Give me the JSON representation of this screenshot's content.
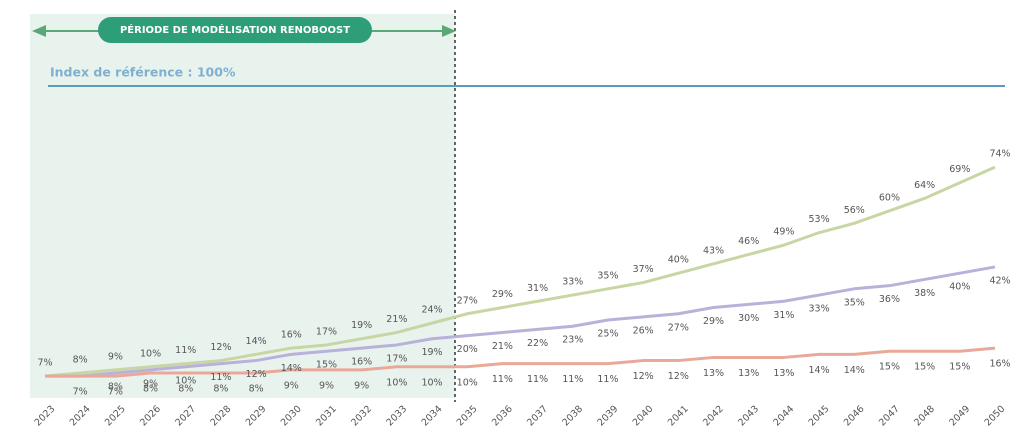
{
  "chart_data": {
    "type": "line",
    "period_label": "PÉRIODE DE MODÉLISATION RENOBOOST",
    "reference": {
      "label": "Index de référence : 100%",
      "value": 100,
      "color": "#5b9bbd"
    },
    "categories": [
      "2023",
      "2024",
      "2025",
      "2026",
      "2027",
      "2028",
      "2029",
      "2030",
      "2031",
      "2032",
      "2033",
      "2034",
      "2035",
      "2036",
      "2037",
      "2038",
      "2039",
      "2040",
      "2041",
      "2042",
      "2043",
      "2044",
      "2045",
      "2046",
      "2047",
      "2048",
      "2049",
      "2050"
    ],
    "ylim": [
      0,
      100
    ],
    "series": [
      {
        "color": "#c8d6a3",
        "values": [
          7,
          8,
          9,
          10,
          11,
          12,
          14,
          16,
          17,
          19,
          21,
          24,
          27,
          29,
          31,
          33,
          35,
          37,
          40,
          43,
          46,
          49,
          53,
          56,
          60,
          64,
          69,
          74
        ],
        "value_labels": [
          "7%",
          "8%",
          "9%",
          "10%",
          "11%",
          "12%",
          "14%",
          "16%",
          "17%",
          "19%",
          "21%",
          "24%",
          "27%",
          "29%",
          "31%",
          "33%",
          "35%",
          "37%",
          "40%",
          "43%",
          "46%",
          "49%",
          "53%",
          "56%",
          "60%",
          "64%",
          "69%",
          "74%"
        ]
      },
      {
        "color": "#b8b2da",
        "values": [
          7,
          7,
          8,
          9,
          10,
          11,
          12,
          14,
          15,
          16,
          17,
          19,
          20,
          21,
          22,
          23,
          25,
          26,
          27,
          29,
          30,
          31,
          33,
          35,
          36,
          38,
          40,
          42
        ],
        "value_labels": [
          null,
          null,
          "8%",
          "9%",
          "10%",
          "11%",
          "12%",
          "14%",
          "15%",
          "16%",
          "17%",
          "19%",
          "20%",
          "21%",
          "22%",
          "23%",
          "25%",
          "26%",
          "27%",
          "29%",
          "30%",
          "31%",
          "33%",
          "35%",
          "36%",
          "38%",
          "40%",
          "42%"
        ]
      },
      {
        "color": "#e9a898",
        "values": [
          7,
          7,
          7,
          8,
          8,
          8,
          8,
          9,
          9,
          9,
          10,
          10,
          10,
          11,
          11,
          11,
          11,
          12,
          12,
          13,
          13,
          13,
          14,
          14,
          15,
          15,
          15,
          16
        ],
        "value_labels": [
          null,
          "7%",
          "7%",
          "8%",
          "8%",
          "8%",
          "8%",
          "9%",
          "9%",
          "9%",
          "10%",
          "10%",
          "10%",
          "11%",
          "11%",
          "11%",
          "11%",
          "12%",
          "12%",
          "13%",
          "13%",
          "13%",
          "14%",
          "14%",
          "15%",
          "15%",
          "15%",
          "16%"
        ]
      }
    ]
  }
}
